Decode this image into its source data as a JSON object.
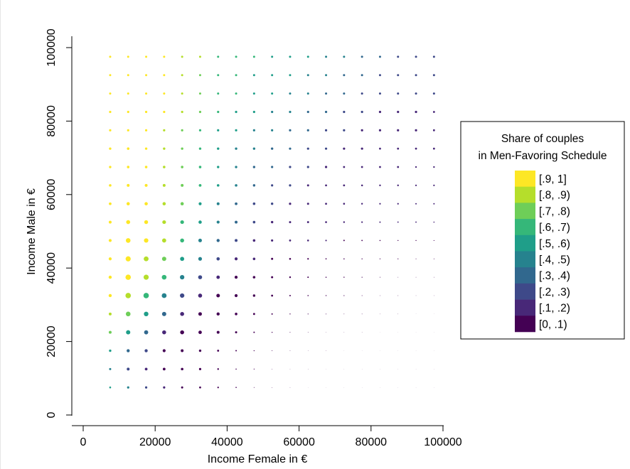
{
  "chart_data": {
    "type": "scatter",
    "xlabel": "Income Female in €",
    "ylabel": "Income Male in €",
    "xlim": [
      -3000,
      100000
    ],
    "ylim": [
      -3000,
      103000
    ],
    "xticks": [
      0,
      20000,
      40000,
      60000,
      80000,
      100000
    ],
    "yticks": [
      0,
      20000,
      40000,
      60000,
      80000,
      100000
    ],
    "xtick_labels": [
      "0",
      "20000",
      "40000",
      "60000",
      "80000",
      "100000"
    ],
    "ytick_labels": [
      "0",
      "20000",
      "40000",
      "60000",
      "80000",
      "100000"
    ],
    "grid": false,
    "x_values": [
      7500,
      12500,
      17500,
      22500,
      27500,
      32500,
      37500,
      42500,
      47500,
      52500,
      57500,
      62500,
      67500,
      72500,
      77500,
      82500,
      87500,
      92500,
      97500
    ],
    "y_values": [
      97500,
      92500,
      87500,
      82500,
      77500,
      72500,
      67500,
      62500,
      57500,
      52500,
      47500,
      42500,
      37500,
      32500,
      27500,
      22500,
      17500,
      12500,
      7500
    ],
    "share_bin_matrix": [
      [
        9,
        9,
        9,
        9,
        8,
        8,
        6,
        6,
        6,
        5,
        5,
        5,
        4,
        4,
        3,
        3,
        2,
        2,
        2
      ],
      [
        9,
        9,
        9,
        9,
        8,
        7,
        6,
        6,
        5,
        5,
        5,
        4,
        4,
        3,
        3,
        2,
        2,
        2,
        2
      ],
      [
        9,
        9,
        9,
        9,
        8,
        7,
        6,
        6,
        5,
        5,
        4,
        4,
        3,
        3,
        2,
        2,
        2,
        2,
        2
      ],
      [
        9,
        9,
        9,
        9,
        8,
        7,
        6,
        5,
        5,
        4,
        4,
        3,
        3,
        2,
        2,
        1,
        1,
        1,
        1
      ],
      [
        9,
        9,
        9,
        8,
        7,
        6,
        5,
        5,
        4,
        4,
        3,
        3,
        2,
        2,
        1,
        1,
        1,
        1,
        1
      ],
      [
        9,
        9,
        9,
        8,
        7,
        6,
        5,
        4,
        4,
        3,
        3,
        2,
        2,
        1,
        1,
        1,
        1,
        1,
        1
      ],
      [
        9,
        9,
        9,
        8,
        7,
        6,
        5,
        4,
        3,
        3,
        2,
        2,
        1,
        1,
        1,
        1,
        1,
        1,
        1
      ],
      [
        9,
        9,
        9,
        8,
        7,
        6,
        5,
        4,
        3,
        2,
        2,
        1,
        1,
        1,
        1,
        1,
        1,
        1,
        1
      ],
      [
        9,
        9,
        9,
        8,
        7,
        5,
        4,
        3,
        2,
        2,
        1,
        1,
        1,
        1,
        1,
        1,
        1,
        1,
        1
      ],
      [
        9,
        9,
        9,
        8,
        6,
        5,
        4,
        3,
        2,
        1,
        1,
        1,
        1,
        1,
        1,
        1,
        1,
        1,
        1
      ],
      [
        9,
        9,
        9,
        8,
        6,
        4,
        3,
        2,
        1,
        1,
        1,
        1,
        1,
        0,
        0,
        0,
        0,
        0,
        0
      ],
      [
        9,
        9,
        8,
        7,
        5,
        4,
        2,
        1,
        1,
        0,
        0,
        0,
        0,
        0,
        0,
        0,
        0,
        0,
        0
      ],
      [
        9,
        9,
        8,
        6,
        4,
        2,
        1,
        0,
        0,
        0,
        0,
        0,
        0,
        0,
        0,
        0,
        0,
        0,
        0
      ],
      [
        9,
        8,
        6,
        4,
        2,
        1,
        0,
        0,
        0,
        0,
        0,
        0,
        0,
        0,
        0,
        0,
        0,
        0,
        0
      ],
      [
        8,
        7,
        5,
        3,
        1,
        0,
        0,
        0,
        0,
        0,
        0,
        0,
        0,
        0,
        0,
        0,
        0,
        0,
        0
      ],
      [
        7,
        5,
        3,
        1,
        0,
        0,
        0,
        0,
        0,
        0,
        0,
        0,
        0,
        0,
        0,
        0,
        0,
        0,
        0
      ],
      [
        5,
        3,
        2,
        0,
        0,
        0,
        0,
        0,
        0,
        0,
        0,
        0,
        0,
        0,
        0,
        0,
        0,
        0,
        0
      ],
      [
        4,
        2,
        1,
        0,
        0,
        0,
        0,
        0,
        0,
        0,
        0,
        0,
        0,
        0,
        0,
        0,
        0,
        0,
        0
      ],
      [
        5,
        4,
        2,
        1,
        0,
        0,
        0,
        0,
        0,
        0,
        0,
        0,
        0,
        0,
        0,
        0,
        0,
        0,
        0
      ]
    ],
    "marker_weight_matrix": [
      [
        1.5,
        1.5,
        1.5,
        1.5,
        1.5,
        1.5,
        1.5,
        1.5,
        1.5,
        1.5,
        1.5,
        1.5,
        1.5,
        1.5,
        1.5,
        1.5,
        1.5,
        1.5,
        1.5
      ],
      [
        1.5,
        1.5,
        1.5,
        1.5,
        1.5,
        1.5,
        1.5,
        1.5,
        1.5,
        1.5,
        1.5,
        1.5,
        1.5,
        1.5,
        1.5,
        1.5,
        1.5,
        1.5,
        1.5
      ],
      [
        1.5,
        1.5,
        1.5,
        1.5,
        1.5,
        1.5,
        1.5,
        1.5,
        1.5,
        1.5,
        1.5,
        1.5,
        1.5,
        1.5,
        1.5,
        1.5,
        1.5,
        1.5,
        1.5
      ],
      [
        1.6,
        1.6,
        1.6,
        1.6,
        1.6,
        1.6,
        1.6,
        1.6,
        1.6,
        1.6,
        1.6,
        1.6,
        1.6,
        1.6,
        1.6,
        1.6,
        1.6,
        1.6,
        1.4
      ],
      [
        1.6,
        1.6,
        1.6,
        1.6,
        1.6,
        1.6,
        1.6,
        1.6,
        1.6,
        1.6,
        1.6,
        1.6,
        1.6,
        1.6,
        1.6,
        1.6,
        1.6,
        1.6,
        1.4
      ],
      [
        1.7,
        1.8,
        1.7,
        1.7,
        1.7,
        1.7,
        1.7,
        1.7,
        1.7,
        1.7,
        1.6,
        1.6,
        1.6,
        1.6,
        1.6,
        1.4,
        1.4,
        1.4,
        1.4
      ],
      [
        1.7,
        1.8,
        1.8,
        1.8,
        1.8,
        1.8,
        1.7,
        1.7,
        1.7,
        1.6,
        1.6,
        1.6,
        1.6,
        1.4,
        1.4,
        1.4,
        1.4,
        1.2,
        1.2
      ],
      [
        1.8,
        2.0,
        2.0,
        2.0,
        2.0,
        1.9,
        1.8,
        1.8,
        1.7,
        1.6,
        1.6,
        1.5,
        1.4,
        1.4,
        1.3,
        1.2,
        1.2,
        1.1,
        1.1
      ],
      [
        1.9,
        2.3,
        2.3,
        2.3,
        2.3,
        2.1,
        2.0,
        1.9,
        1.8,
        1.7,
        1.6,
        1.5,
        1.4,
        1.3,
        1.2,
        1.1,
        1.1,
        1.0,
        1.0
      ],
      [
        2.0,
        2.8,
        2.7,
        2.6,
        2.6,
        2.3,
        2.1,
        2.0,
        1.8,
        1.7,
        1.5,
        1.4,
        1.3,
        1.2,
        1.1,
        1.0,
        0.9,
        0.9,
        0.8
      ],
      [
        2.1,
        3.3,
        3.1,
        2.9,
        2.8,
        2.5,
        2.2,
        2.0,
        1.8,
        1.6,
        1.4,
        1.3,
        1.1,
        1.0,
        0.9,
        0.8,
        0.7,
        0.7,
        0.6
      ],
      [
        2.1,
        3.6,
        3.4,
        3.0,
        2.9,
        2.6,
        2.3,
        2.1,
        1.8,
        1.5,
        1.3,
        1.1,
        0.9,
        0.8,
        0.7,
        0.6,
        0.6,
        0.5,
        0.5
      ],
      [
        2.2,
        3.8,
        3.6,
        3.3,
        3.1,
        2.8,
        2.4,
        2.1,
        1.8,
        1.5,
        1.2,
        1.0,
        0.8,
        0.7,
        0.6,
        0.5,
        0.4,
        0.4,
        0.4
      ],
      [
        2.2,
        3.8,
        3.8,
        3.4,
        3.1,
        2.8,
        2.5,
        2.1,
        1.7,
        1.4,
        1.0,
        0.8,
        0.7,
        0.6,
        0.5,
        0.4,
        0.4,
        0.3,
        0.3
      ],
      [
        2.0,
        3.3,
        3.2,
        3.0,
        2.8,
        2.5,
        2.2,
        1.8,
        1.4,
        1.0,
        0.7,
        0.6,
        0.5,
        0.4,
        0.4,
        0.3,
        0.3,
        0.2,
        0.2
      ],
      [
        2.0,
        3.0,
        2.9,
        2.8,
        2.8,
        2.4,
        2.0,
        1.5,
        1.0,
        0.7,
        0.5,
        0.4,
        0.3,
        0.3,
        0.3,
        0.2,
        0.2,
        0.2,
        0.2
      ],
      [
        1.7,
        2.2,
        2.2,
        2.1,
        2.0,
        1.7,
        1.4,
        1.0,
        0.7,
        0.5,
        0.4,
        0.3,
        0.3,
        0.2,
        0.2,
        0.2,
        0.2,
        0.2,
        0.2
      ],
      [
        1.5,
        2.0,
        1.9,
        1.9,
        1.8,
        1.6,
        1.2,
        0.8,
        0.6,
        0.4,
        0.3,
        0.3,
        0.2,
        0.2,
        0.2,
        0.2,
        0.2,
        0.2,
        0.2
      ],
      [
        1.3,
        1.6,
        1.6,
        1.6,
        1.5,
        1.4,
        1.1,
        0.8,
        0.5,
        0.4,
        0.3,
        0.2,
        0.2,
        0.2,
        0.2,
        0.2,
        0.2,
        0.2,
        0.2
      ]
    ],
    "legend": {
      "position": "right",
      "title_lines": [
        "Share of couples",
        "in Men-Favoring Schedule"
      ],
      "bins": [
        {
          "label": "[.9, 1]",
          "color": "#fde725"
        },
        {
          "label": "[.8, .9)",
          "color": "#b5de2b"
        },
        {
          "label": "[.7, .8)",
          "color": "#6ece58"
        },
        {
          "label": "[.6, .7)",
          "color": "#35b779"
        },
        {
          "label": "[.5, .6)",
          "color": "#1f9e89"
        },
        {
          "label": "[.4, .5)",
          "color": "#26828e"
        },
        {
          "label": "[.3, .4)",
          "color": "#31688e"
        },
        {
          "label": "[.2, .3)",
          "color": "#3e4989"
        },
        {
          "label": "[.1, .2)",
          "color": "#482878"
        },
        {
          "label": "[0, .1)",
          "color": "#440154"
        }
      ]
    }
  }
}
